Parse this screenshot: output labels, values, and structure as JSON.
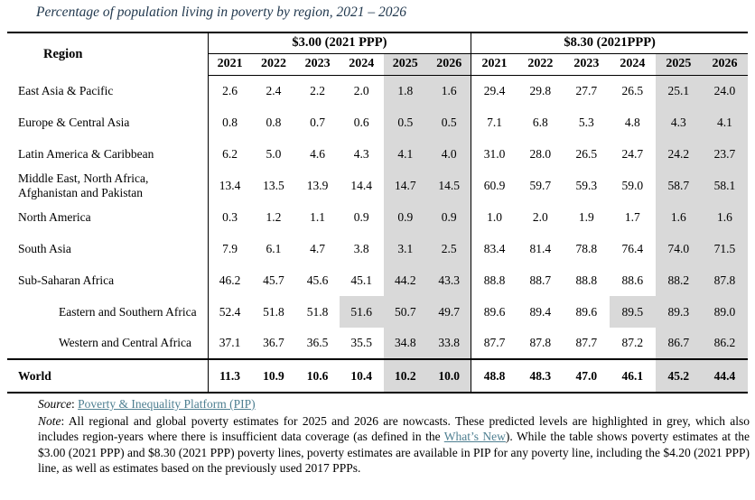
{
  "title": "Percentage of population living in poverty by region, 2021 – 2026",
  "colors": {
    "highlight_grey": "#d9d9d9",
    "title_navy": "#21384e",
    "link_teal": "#4e7f91"
  },
  "table": {
    "region_header": "Region",
    "panel1_label": "$3.00 (2021 PPP)",
    "panel2_label": "$8.30 (2021PPP)",
    "years": [
      "2021",
      "2022",
      "2023",
      "2024",
      "2025",
      "2026"
    ],
    "grey_from": 4,
    "rows": [
      {
        "region": "East Asia & Pacific",
        "indent": false,
        "p1": [
          "2.6",
          "2.4",
          "2.2",
          "2.0",
          "1.8",
          "1.6"
        ],
        "p2": [
          "29.4",
          "29.8",
          "27.7",
          "26.5",
          "25.1",
          "24.0"
        ]
      },
      {
        "region": "Europe & Central Asia",
        "indent": false,
        "p1": [
          "0.8",
          "0.8",
          "0.7",
          "0.6",
          "0.5",
          "0.5"
        ],
        "p2": [
          "7.1",
          "6.8",
          "5.3",
          "4.8",
          "4.3",
          "4.1"
        ]
      },
      {
        "region": "Latin America & Caribbean",
        "indent": false,
        "p1": [
          "6.2",
          "5.0",
          "4.6",
          "4.3",
          "4.1",
          "4.0"
        ],
        "p2": [
          "31.0",
          "28.0",
          "26.5",
          "24.7",
          "24.2",
          "23.7"
        ]
      },
      {
        "region": "Middle East, North Africa, Afghanistan and Pakistan",
        "indent": false,
        "p1": [
          "13.4",
          "13.5",
          "13.9",
          "14.4",
          "14.7",
          "14.5"
        ],
        "p2": [
          "60.9",
          "59.7",
          "59.3",
          "59.0",
          "58.7",
          "58.1"
        ]
      },
      {
        "region": "North America",
        "indent": false,
        "p1": [
          "0.3",
          "1.2",
          "1.1",
          "0.9",
          "0.9",
          "0.9"
        ],
        "p2": [
          "1.0",
          "2.0",
          "1.9",
          "1.7",
          "1.6",
          "1.6"
        ]
      },
      {
        "region": "South Asia",
        "indent": false,
        "p1": [
          "7.9",
          "6.1",
          "4.7",
          "3.8",
          "3.1",
          "2.5"
        ],
        "p2": [
          "83.4",
          "81.4",
          "78.8",
          "76.4",
          "74.0",
          "71.5"
        ]
      },
      {
        "region": "Sub-Saharan Africa",
        "indent": false,
        "p1": [
          "46.2",
          "45.7",
          "45.6",
          "45.1",
          "44.2",
          "43.3"
        ],
        "p2": [
          "88.8",
          "88.7",
          "88.8",
          "88.6",
          "88.2",
          "87.8"
        ]
      },
      {
        "region": "Eastern and Southern Africa",
        "indent": true,
        "extra_grey": [
          3
        ],
        "p1": [
          "52.4",
          "51.8",
          "51.8",
          "51.6",
          "50.7",
          "49.7"
        ],
        "p2": [
          "89.6",
          "89.4",
          "89.6",
          "89.5",
          "89.3",
          "89.0"
        ]
      },
      {
        "region": "Western and Central Africa",
        "indent": true,
        "p1": [
          "37.1",
          "36.7",
          "36.5",
          "35.5",
          "34.8",
          "33.8"
        ],
        "p2": [
          "87.7",
          "87.8",
          "87.7",
          "87.2",
          "86.7",
          "86.2"
        ]
      }
    ],
    "world_row": {
      "region": "World",
      "indent": false,
      "p1": [
        "11.3",
        "10.9",
        "10.6",
        "10.4",
        "10.2",
        "10.0"
      ],
      "p2": [
        "48.8",
        "48.3",
        "47.0",
        "46.1",
        "45.2",
        "44.4"
      ]
    }
  },
  "chart_data": {
    "type": "table",
    "title": "Percentage of population living in poverty by region, 2021 – 2026",
    "column_groups": [
      "$3.00 (2021 PPP)",
      "$8.30 (2021PPP)"
    ],
    "years": [
      2021,
      2022,
      2023,
      2024,
      2025,
      2026
    ],
    "series": [
      {
        "name": "East Asia & Pacific",
        "line_3_00": [
          2.6,
          2.4,
          2.2,
          2.0,
          1.8,
          1.6
        ],
        "line_8_30": [
          29.4,
          29.8,
          27.7,
          26.5,
          25.1,
          24.0
        ]
      },
      {
        "name": "Europe & Central Asia",
        "line_3_00": [
          0.8,
          0.8,
          0.7,
          0.6,
          0.5,
          0.5
        ],
        "line_8_30": [
          7.1,
          6.8,
          5.3,
          4.8,
          4.3,
          4.1
        ]
      },
      {
        "name": "Latin America & Caribbean",
        "line_3_00": [
          6.2,
          5.0,
          4.6,
          4.3,
          4.1,
          4.0
        ],
        "line_8_30": [
          31.0,
          28.0,
          26.5,
          24.7,
          24.2,
          23.7
        ]
      },
      {
        "name": "Middle East, North Africa, Afghanistan and Pakistan",
        "line_3_00": [
          13.4,
          13.5,
          13.9,
          14.4,
          14.7,
          14.5
        ],
        "line_8_30": [
          60.9,
          59.7,
          59.3,
          59.0,
          58.7,
          58.1
        ]
      },
      {
        "name": "North America",
        "line_3_00": [
          0.3,
          1.2,
          1.1,
          0.9,
          0.9,
          0.9
        ],
        "line_8_30": [
          1.0,
          2.0,
          1.9,
          1.7,
          1.6,
          1.6
        ]
      },
      {
        "name": "South Asia",
        "line_3_00": [
          7.9,
          6.1,
          4.7,
          3.8,
          3.1,
          2.5
        ],
        "line_8_30": [
          83.4,
          81.4,
          78.8,
          76.4,
          74.0,
          71.5
        ]
      },
      {
        "name": "Sub-Saharan Africa",
        "line_3_00": [
          46.2,
          45.7,
          45.6,
          45.1,
          44.2,
          43.3
        ],
        "line_8_30": [
          88.8,
          88.7,
          88.8,
          88.6,
          88.2,
          87.8
        ]
      },
      {
        "name": "Eastern and Southern Africa",
        "line_3_00": [
          52.4,
          51.8,
          51.8,
          51.6,
          50.7,
          49.7
        ],
        "line_8_30": [
          89.6,
          89.4,
          89.6,
          89.5,
          89.3,
          89.0
        ]
      },
      {
        "name": "Western and Central Africa",
        "line_3_00": [
          37.1,
          36.7,
          36.5,
          35.5,
          34.8,
          33.8
        ],
        "line_8_30": [
          87.7,
          87.8,
          87.7,
          87.2,
          86.7,
          86.2
        ]
      },
      {
        "name": "World",
        "line_3_00": [
          11.3,
          10.9,
          10.6,
          10.4,
          10.2,
          10.0
        ],
        "line_8_30": [
          48.8,
          48.3,
          47.0,
          46.1,
          45.2,
          44.4
        ]
      }
    ],
    "highlight_note": "2025 and 2026 columns highlighted grey; Eastern and Southern Africa 2024 also highlighted grey in both panels"
  },
  "footer": {
    "source_label": "Source",
    "source_sep": ": ",
    "source_link": "Poverty & Inequality Platform (PIP)",
    "note_label": "Note",
    "note_sep": ": ",
    "note_pre": "All regional and global poverty estimates for 2025 and 2026 are nowcasts. These predicted levels are highlighted in grey, which also includes region-years where there is insufficient data coverage (as defined in the ",
    "whats_new_link": "What’s New",
    "note_post": "). While the table shows poverty estimates at the $3.00 (2021 PPP) and $8.30 (2021 PPP) poverty lines, poverty estimates are available in PIP for any poverty line, including the $4.20 (2021 PPP) line, as well as estimates based on the previously used 2017 PPPs."
  }
}
